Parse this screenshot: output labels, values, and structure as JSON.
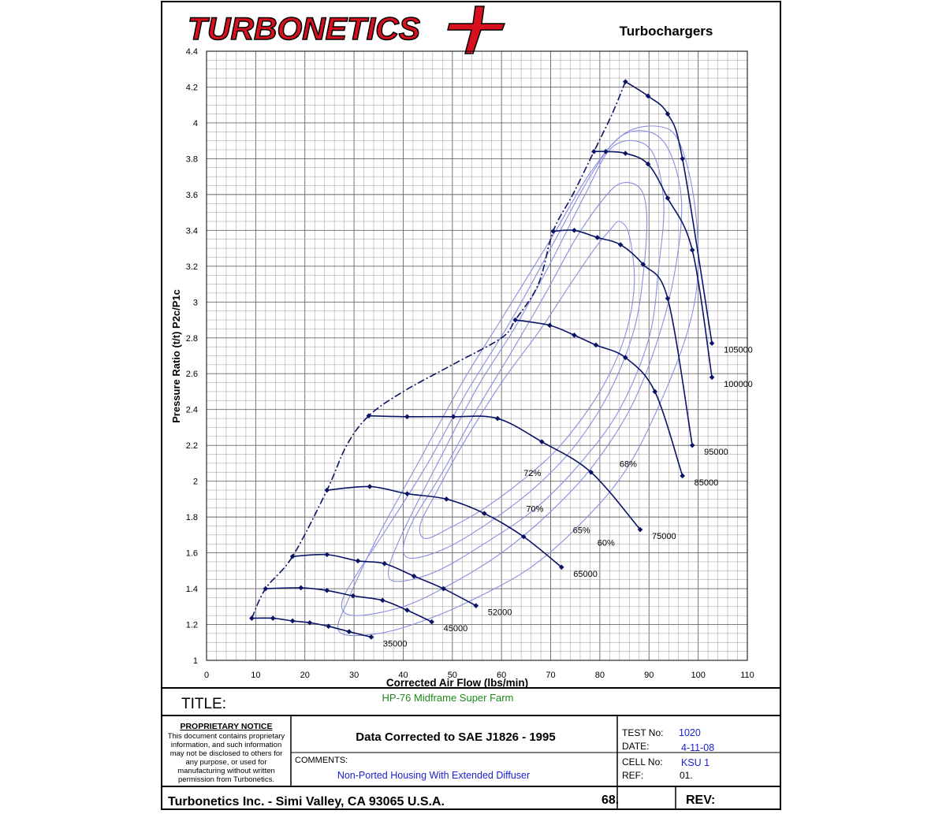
{
  "header": {
    "brand": "TURBONETICS",
    "subtitle": "Turbochargers"
  },
  "chart_data": {
    "type": "line",
    "xlabel": "Corrected Air Flow (lbs/min)",
    "ylabel": "Pressure Ratio (t/t) P2c/P1c",
    "xlim": [
      0,
      110
    ],
    "ylim": [
      1,
      4.4
    ],
    "x_ticks": [
      "0",
      "10",
      "20",
      "30",
      "40",
      "50",
      "60",
      "70",
      "80",
      "90",
      "100",
      "110"
    ],
    "y_ticks": [
      "1",
      "1.2",
      "1.4",
      "1.6",
      "1.8",
      "2",
      "2.2",
      "2.4",
      "2.6",
      "2.8",
      "3",
      "3.2",
      "3.4",
      "3.6",
      "3.8",
      "4",
      "4.2",
      "4.4"
    ],
    "grid": true,
    "speed_lines": [
      {
        "label": "35000",
        "points": [
          [
            9.2,
            1.235
          ],
          [
            13.5,
            1.235
          ],
          [
            17.5,
            1.22
          ],
          [
            21,
            1.21
          ],
          [
            24.8,
            1.19
          ],
          [
            29,
            1.16
          ],
          [
            33.5,
            1.13
          ]
        ]
      },
      {
        "label": "45000",
        "points": [
          [
            12,
            1.4
          ],
          [
            19.2,
            1.405
          ],
          [
            24.5,
            1.39
          ],
          [
            29.8,
            1.36
          ],
          [
            35.8,
            1.335
          ],
          [
            40.8,
            1.28
          ],
          [
            45.8,
            1.215
          ]
        ]
      },
      {
        "label": "52000",
        "points": [
          [
            17.5,
            1.58
          ],
          [
            24.5,
            1.59
          ],
          [
            30.8,
            1.555
          ],
          [
            36.2,
            1.54
          ],
          [
            42.2,
            1.47
          ],
          [
            48.2,
            1.4
          ],
          [
            54.8,
            1.305
          ]
        ]
      },
      {
        "label": "65000",
        "points": [
          [
            24.5,
            1.95
          ],
          [
            33.2,
            1.97
          ],
          [
            40.8,
            1.93
          ],
          [
            48.8,
            1.9
          ],
          [
            56.5,
            1.82
          ],
          [
            64.5,
            1.69
          ],
          [
            72.2,
            1.52
          ]
        ]
      },
      {
        "label": "75000",
        "points": [
          [
            33,
            2.365
          ],
          [
            40.8,
            2.36
          ],
          [
            50.2,
            2.36
          ],
          [
            59.2,
            2.35
          ],
          [
            68.2,
            2.22
          ],
          [
            78.2,
            2.05
          ],
          [
            88.2,
            1.73
          ]
        ]
      },
      {
        "label": "85000",
        "points": [
          [
            62.8,
            2.9
          ],
          [
            69.8,
            2.87
          ],
          [
            74.8,
            2.815
          ],
          [
            79.2,
            2.76
          ],
          [
            85.2,
            2.69
          ],
          [
            91.2,
            2.5
          ],
          [
            96.8,
            2.03
          ]
        ]
      },
      {
        "label": "95000",
        "points": [
          [
            70.5,
            3.395
          ],
          [
            74.8,
            3.4
          ],
          [
            79.5,
            3.36
          ],
          [
            84.2,
            3.32
          ],
          [
            88.8,
            3.21
          ],
          [
            93.8,
            3.02
          ],
          [
            98.8,
            2.2
          ]
        ]
      },
      {
        "label": "100000",
        "points": [
          [
            78.8,
            3.84
          ],
          [
            81.2,
            3.84
          ],
          [
            85.2,
            3.83
          ],
          [
            89.8,
            3.77
          ],
          [
            93.8,
            3.58
          ],
          [
            98.8,
            3.29
          ],
          [
            102.8,
            2.58
          ]
        ]
      },
      {
        "label": "105000",
        "points": [
          [
            85.2,
            4.23
          ],
          [
            89.8,
            4.15
          ],
          [
            93.8,
            4.05
          ],
          [
            96.8,
            3.8
          ],
          [
            102.8,
            2.77
          ]
        ]
      }
    ],
    "surge_line": [
      [
        9.2,
        1.235
      ],
      [
        12,
        1.4
      ],
      [
        17.5,
        1.58
      ],
      [
        24.5,
        1.95
      ],
      [
        28.5,
        2.2
      ],
      [
        33,
        2.365
      ],
      [
        40,
        2.5
      ],
      [
        50,
        2.65
      ],
      [
        60,
        2.8
      ],
      [
        62.8,
        2.9
      ],
      [
        67.5,
        3.1
      ],
      [
        70.5,
        3.395
      ],
      [
        74.5,
        3.6
      ],
      [
        78.8,
        3.84
      ],
      [
        82.5,
        4.05
      ],
      [
        85.2,
        4.23
      ]
    ],
    "efficiency_islands": [
      {
        "label": "72%",
        "points": [
          [
            43.5,
            1.76
          ],
          [
            44.5,
            1.68
          ],
          [
            49.5,
            1.74
          ],
          [
            56,
            1.84
          ],
          [
            64,
            2.0
          ],
          [
            72,
            2.2
          ],
          [
            80,
            2.5
          ],
          [
            85,
            2.8
          ],
          [
            87,
            3.1
          ],
          [
            86,
            3.37
          ],
          [
            84,
            3.45
          ],
          [
            82,
            3.4
          ],
          [
            79,
            3.3
          ],
          [
            74,
            3.1
          ],
          [
            68,
            2.85
          ],
          [
            60,
            2.55
          ],
          [
            52,
            2.2
          ],
          [
            47,
            1.95
          ],
          [
            43.5,
            1.76
          ]
        ]
      },
      {
        "label": "70%",
        "points": [
          [
            40,
            1.62
          ],
          [
            42,
            1.57
          ],
          [
            49,
            1.63
          ],
          [
            58,
            1.78
          ],
          [
            67,
            1.97
          ],
          [
            75,
            2.2
          ],
          [
            82,
            2.5
          ],
          [
            87,
            2.85
          ],
          [
            89,
            3.2
          ],
          [
            89.5,
            3.5
          ],
          [
            88,
            3.64
          ],
          [
            84,
            3.66
          ],
          [
            80,
            3.55
          ],
          [
            75,
            3.35
          ],
          [
            69,
            3.05
          ],
          [
            62,
            2.72
          ],
          [
            55,
            2.4
          ],
          [
            48,
            2.05
          ],
          [
            42,
            1.78
          ],
          [
            40,
            1.62
          ]
        ]
      },
      {
        "label": "68%",
        "points": [
          [
            37,
            1.5
          ],
          [
            39,
            1.44
          ],
          [
            47,
            1.5
          ],
          [
            57,
            1.66
          ],
          [
            67,
            1.85
          ],
          [
            76,
            2.1
          ],
          [
            84,
            2.4
          ],
          [
            90,
            2.8
          ],
          [
            92,
            3.2
          ],
          [
            93,
            3.55
          ],
          [
            91,
            3.82
          ],
          [
            87,
            3.9
          ],
          [
            82,
            3.85
          ],
          [
            77,
            3.6
          ],
          [
            70,
            3.22
          ],
          [
            63,
            2.87
          ],
          [
            55,
            2.52
          ],
          [
            47,
            2.1
          ],
          [
            40,
            1.72
          ],
          [
            37,
            1.5
          ]
        ]
      },
      {
        "label": "65%",
        "points": [
          [
            27.5,
            1.32
          ],
          [
            30,
            1.25
          ],
          [
            40,
            1.3
          ],
          [
            50,
            1.43
          ],
          [
            60,
            1.6
          ],
          [
            70,
            1.83
          ],
          [
            79,
            2.1
          ],
          [
            87,
            2.45
          ],
          [
            93,
            2.9
          ],
          [
            96,
            3.3
          ],
          [
            96.5,
            3.6
          ],
          [
            94,
            3.85
          ],
          [
            90,
            3.95
          ],
          [
            84,
            3.92
          ],
          [
            78,
            3.7
          ],
          [
            70,
            3.3
          ],
          [
            62,
            2.9
          ],
          [
            53,
            2.5
          ],
          [
            45,
            2.1
          ],
          [
            37,
            1.75
          ],
          [
            31,
            1.5
          ],
          [
            27.5,
            1.32
          ]
        ]
      },
      {
        "label": "60%",
        "points": [
          [
            27,
            1.16
          ],
          [
            35,
            1.15
          ],
          [
            45,
            1.23
          ],
          [
            55,
            1.35
          ],
          [
            66,
            1.52
          ],
          [
            76,
            1.76
          ],
          [
            85,
            2.05
          ],
          [
            92,
            2.42
          ],
          [
            98,
            2.85
          ],
          [
            100,
            3.2
          ],
          [
            99,
            3.6
          ],
          [
            96,
            3.9
          ],
          [
            92,
            3.98
          ],
          [
            85,
            3.94
          ],
          [
            78,
            3.72
          ],
          [
            70,
            3.35
          ],
          [
            61,
            2.95
          ],
          [
            52,
            2.55
          ],
          [
            43,
            2.1
          ],
          [
            35,
            1.7
          ],
          [
            29,
            1.35
          ],
          [
            27,
            1.16
          ]
        ]
      }
    ]
  },
  "efficiency_labels": [
    {
      "text": "72%",
      "x": 64.5,
      "y": 2.03
    },
    {
      "text": "70%",
      "x": 65,
      "y": 1.83
    },
    {
      "text": "68%",
      "x": 84,
      "y": 2.08
    },
    {
      "text": "65%",
      "x": 74.5,
      "y": 1.71
    },
    {
      "text": "60%",
      "x": 79.5,
      "y": 1.64
    }
  ],
  "title_block": {
    "title_label": "TITLE:",
    "title_value": "HP-76 Midframe Super Farm",
    "notice_heading": "PROPRIETARY NOTICE",
    "notice_lines": [
      "This document contains proprietary",
      "information, and such information",
      "may not be disclosed to others for",
      "any purpose, or used for",
      "manufacturing without written",
      "permission from Turbonetics."
    ],
    "correction": "Data Corrected to SAE J1826 - 1995",
    "comments_label": "COMMENTS:",
    "comments_value": "Non-Ported Housing With Extended Diffuser",
    "test_label": "TEST No:",
    "test_value": "1020",
    "date_label": "DATE:",
    "date_value": "4-11-08",
    "cell_label": "CELL No:",
    "cell_value": "KSU 1",
    "ref_label": "REF:",
    "ref_value": "01.",
    "footer_company": "Turbonetics Inc. - Simi Valley, CA 93065 U.S.A.",
    "footer_number": "68.",
    "footer_rev": "REV:"
  }
}
